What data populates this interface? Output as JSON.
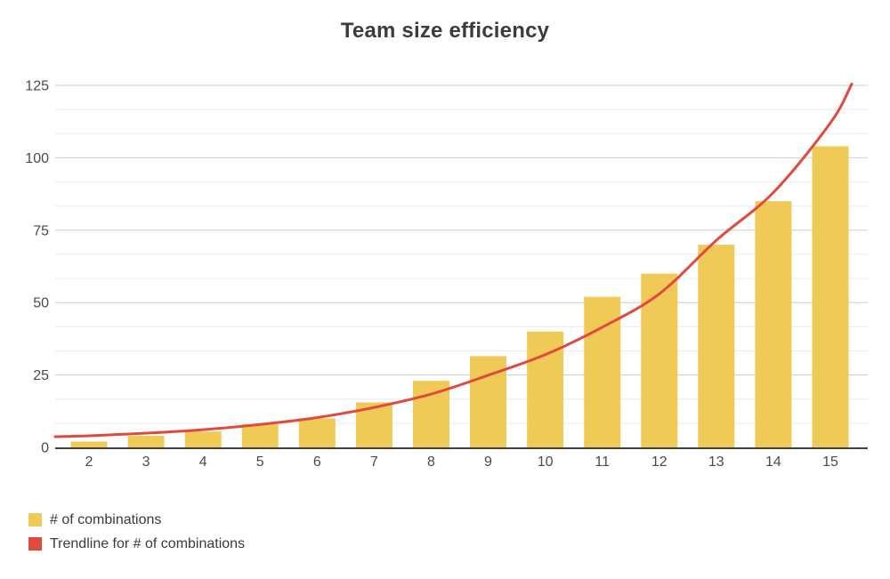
{
  "chart_data": {
    "type": "bar",
    "title": "Team size efficiency",
    "categories": [
      2,
      3,
      4,
      5,
      6,
      7,
      8,
      9,
      10,
      11,
      12,
      13,
      14,
      15
    ],
    "series": [
      {
        "name": "# of combinations",
        "type": "bar",
        "color": "#F0CA57",
        "values": [
          2,
          4,
          5.5,
          8,
          10,
          15.5,
          23,
          31.5,
          40,
          52,
          60,
          70,
          85,
          104
        ]
      },
      {
        "name": "Trendline for # of combinations",
        "type": "line",
        "model": "exponential",
        "color": "#E2493E",
        "values": [
          4,
          4.9,
          6.1,
          7.9,
          10.3,
          13.8,
          18.4,
          24.9,
          32,
          41.5,
          53,
          71.5,
          88,
          112
        ],
        "edge_start_value": 3.7,
        "edge_end_value": 125.5
      }
    ],
    "xlabel": "",
    "ylabel": "",
    "ylim": [
      0,
      125
    ],
    "y_ticks": [
      0,
      25,
      50,
      75,
      100,
      125
    ],
    "minor_gridline_divisions": 3,
    "grid": true,
    "legend_position": "bottom-left"
  },
  "legend": {
    "items": [
      {
        "label": "# of combinations",
        "color": "#F0CA57"
      },
      {
        "label": "Trendline for # of combinations",
        "color": "#E2493E"
      }
    ]
  },
  "colors": {
    "background": "#FFFFFF",
    "title_text": "#3C3C3C",
    "tick_text": "#4A4A4A",
    "axis_line": "#424242",
    "gridline_major": "#CDCDCD",
    "gridline_minor": "#EAEAEA",
    "legend_text": "#3A3A3A"
  }
}
